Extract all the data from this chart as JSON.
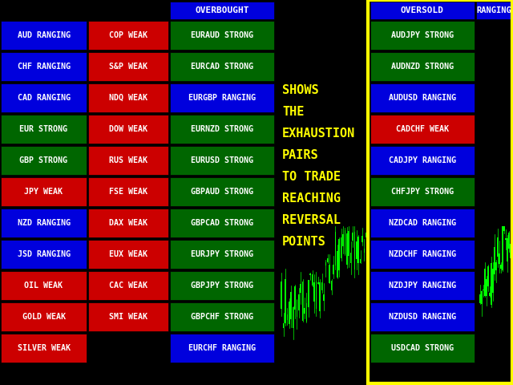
{
  "background_color": "#000000",
  "title_color": "#ffff00",
  "box_text_color": "#ffffff",
  "yellow_border_color": "#ffff00",
  "figsize": [
    6.4,
    4.8
  ],
  "dpi": 100,
  "col1_labels": [
    [
      "AUD RANGING",
      "blue"
    ],
    [
      "CHF RANGING",
      "blue"
    ],
    [
      "CAD RANGING",
      "blue"
    ],
    [
      "EUR STRONG",
      "green"
    ],
    [
      "GBP STRONG",
      "green"
    ],
    [
      "JPY WEAK",
      "red"
    ],
    [
      "NZD RANGING",
      "blue"
    ],
    [
      "JSD RANGING",
      "blue"
    ],
    [
      "OIL WEAK",
      "red"
    ],
    [
      "GOLD WEAK",
      "red"
    ],
    [
      "SILVER WEAK",
      "red"
    ]
  ],
  "col2_labels": [
    [
      "COP WEAK",
      "red"
    ],
    [
      "S&P WEAK",
      "red"
    ],
    [
      "NDQ WEAK",
      "red"
    ],
    [
      "DOW WEAK",
      "red"
    ],
    [
      "RUS WEAK",
      "red"
    ],
    [
      "FSE WEAK",
      "red"
    ],
    [
      "DAX WEAK",
      "red"
    ],
    [
      "EUX WEAK",
      "red"
    ],
    [
      "CAC WEAK",
      "red"
    ],
    [
      "SMI WEAK",
      "red"
    ]
  ],
  "col3_header": "OVERBOUGHT",
  "col3_labels": [
    [
      "EURAUD STRONG",
      "green"
    ],
    [
      "EURCAD STRONG",
      "green"
    ],
    [
      "EURGBP RANGING",
      "blue"
    ],
    [
      "EURNZD STRONG",
      "green"
    ],
    [
      "EURUSD STRONG",
      "green"
    ],
    [
      "GBPAUD STRONG",
      "green"
    ],
    [
      "GBPCAD STRONG",
      "green"
    ],
    [
      "EURJPY STRONG",
      "green"
    ],
    [
      "GBPJPY STRONG",
      "green"
    ],
    [
      "GBPCHF STRONG",
      "green"
    ],
    [
      "EURCHF RANGING",
      "blue"
    ]
  ],
  "col4_header": "OVERSOLD",
  "col4_labels": [
    [
      "AUDJPY STRONG",
      "green"
    ],
    [
      "AUDNZD STRONG",
      "green"
    ],
    [
      "AUDUSD RANGING",
      "blue"
    ],
    [
      "CADCHF WEAK",
      "red"
    ],
    [
      "CADJPY RANGING",
      "blue"
    ],
    [
      "CHFJPY STRONG",
      "green"
    ],
    [
      "NZDCAD RANGING",
      "blue"
    ],
    [
      "NZDCHF RANGING",
      "blue"
    ],
    [
      "NZDJPY RANGING",
      "blue"
    ],
    [
      "NZDUSD RANGING",
      "blue"
    ],
    [
      "USDCAD STRONG",
      "green"
    ]
  ],
  "col5_header": "RANGING",
  "center_text_lines": [
    "SHOWS",
    "THE",
    "EXHAUSTION",
    "PAIRS",
    "TO TRADE",
    "REACHING",
    "REVERSAL",
    "POINTS"
  ]
}
